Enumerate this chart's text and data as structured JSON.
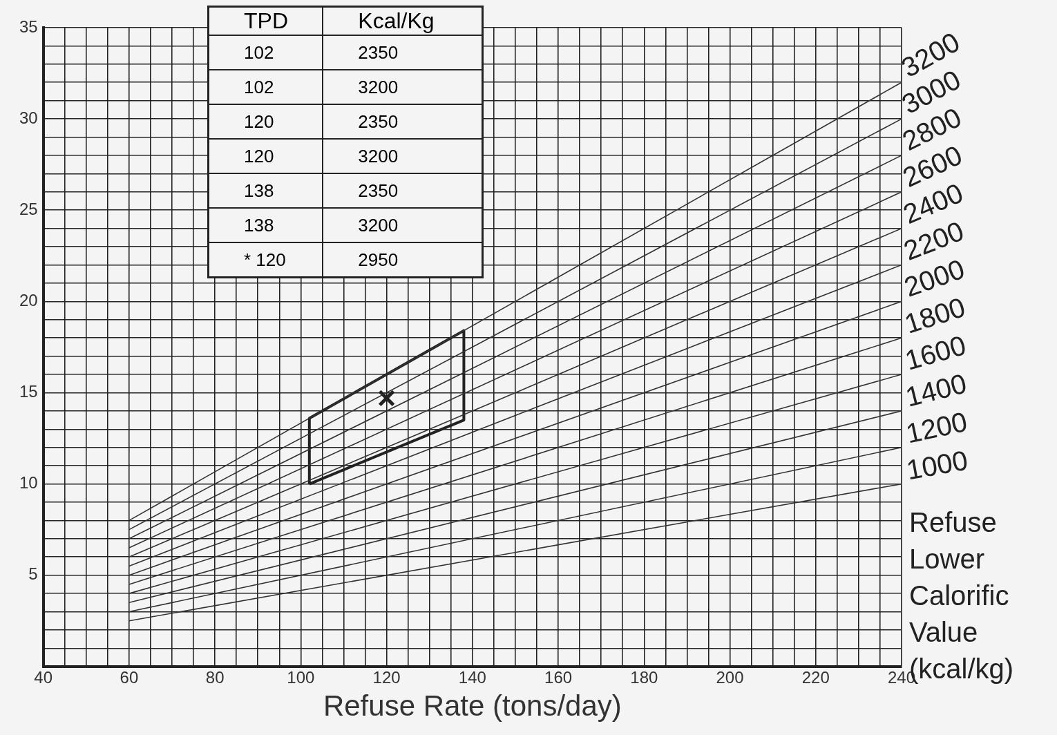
{
  "chart_data": {
    "type": "line",
    "xlabel": "Refuse Rate (tons/day)",
    "legend_title": "Refuse Lower Calorific Value (kcal/kg)",
    "annotations": [
      "TPD",
      "Kcal/Kg",
      "102",
      "2350",
      "102",
      "3200",
      "120",
      "2350",
      "120",
      "3200",
      "138",
      "2350",
      "138",
      "3200",
      "* 120",
      "2950"
    ],
    "xlim": [
      40,
      240
    ],
    "ylim": [
      0,
      35
    ],
    "xticks": [
      40,
      {
        "value": 45,
        "label": null
      },
      {
        "value": 50,
        "label": null
      },
      {
        "value": 55,
        "label": null
      },
      60,
      {
        "value": 65,
        "label": null
      },
      {
        "value": 70,
        "label": null
      },
      {
        "value": 75,
        "label": null
      },
      80,
      {
        "value": 85,
        "label": null
      },
      {
        "value": 90,
        "label": null
      },
      {
        "value": 95,
        "label": null
      },
      100,
      {
        "value": 105,
        "label": null
      },
      {
        "value": 110,
        "label": null
      },
      {
        "value": 115,
        "label": null
      },
      120,
      {
        "value": 125,
        "label": null
      },
      {
        "value": 130,
        "label": null
      },
      {
        "value": 135,
        "label": null
      },
      140,
      {
        "value": 145,
        "label": null
      },
      {
        "value": 150,
        "label": null
      },
      {
        "value": 155,
        "label": null
      },
      160,
      {
        "value": 165,
        "label": null
      },
      {
        "value": 170,
        "label": null
      },
      {
        "value": 175,
        "label": null
      },
      180,
      {
        "value": 185,
        "label": null
      },
      {
        "value": 190,
        "label": null
      },
      {
        "value": 195,
        "label": null
      },
      200,
      {
        "value": 205,
        "label": null
      },
      {
        "value": 210,
        "label": null
      },
      {
        "value": 215,
        "label": null
      },
      220,
      {
        "value": 225,
        "label": null
      },
      {
        "value": 230,
        "label": null
      },
      {
        "value": 235,
        "label": null
      },
      240
    ],
    "yticks": [
      {
        "value": 0,
        "label": null
      },
      {
        "value": 1,
        "label": null
      },
      {
        "value": 2,
        "label": null
      },
      {
        "value": 3,
        "label": null
      },
      {
        "value": 4,
        "label": null
      },
      5,
      {
        "value": 6,
        "label": null
      },
      {
        "value": 7,
        "label": null
      },
      {
        "value": 8,
        "label": null
      },
      {
        "value": 9,
        "label": null
      },
      10,
      {
        "value": 11,
        "label": null
      },
      {
        "value": 12,
        "label": null
      },
      {
        "value": 13,
        "label": null
      },
      {
        "value": 14,
        "label": null
      },
      15,
      {
        "value": 16,
        "label": null
      },
      {
        "value": 17,
        "label": null
      },
      {
        "value": 18,
        "label": null
      },
      {
        "value": 19,
        "label": null
      },
      20,
      {
        "value": 21,
        "label": null
      },
      {
        "value": 22,
        "label": null
      },
      {
        "value": 23,
        "label": null
      },
      {
        "value": 24,
        "label": null
      },
      25,
      {
        "value": 26,
        "label": null
      },
      {
        "value": 27,
        "label": null
      },
      {
        "value": 28,
        "label": null
      },
      {
        "value": 29,
        "label": null
      },
      30,
      {
        "value": 31,
        "label": null
      },
      {
        "value": 32,
        "label": null
      },
      {
        "value": 33,
        "label": null
      },
      {
        "value": 34,
        "label": null
      },
      35
    ],
    "grid": true,
    "marker": "none",
    "line_style": "solid",
    "series": [
      {
        "name": "3200",
        "color": "#333333",
        "x": [
          60,
          240
        ],
        "values": [
          8.0,
          32.0
        ]
      },
      {
        "name": "3000",
        "color": "#333333",
        "x": [
          60,
          240
        ],
        "values": [
          7.5,
          30.0
        ]
      },
      {
        "name": "2800",
        "color": "#333333",
        "x": [
          60,
          240
        ],
        "values": [
          7.0,
          28.0
        ]
      },
      {
        "name": "2600",
        "color": "#333333",
        "x": [
          60,
          240
        ],
        "values": [
          6.5,
          26.0
        ]
      },
      {
        "name": "2400",
        "color": "#333333",
        "x": [
          60,
          240
        ],
        "values": [
          6.0,
          24.0
        ]
      },
      {
        "name": "2200",
        "color": "#333333",
        "x": [
          60,
          240
        ],
        "values": [
          5.5,
          22.0
        ]
      },
      {
        "name": "2000",
        "color": "#333333",
        "x": [
          60,
          240
        ],
        "values": [
          5.0,
          20.0
        ]
      },
      {
        "name": "1800",
        "color": "#333333",
        "x": [
          60,
          240
        ],
        "values": [
          4.5,
          18.0
        ]
      },
      {
        "name": "1600",
        "color": "#333333",
        "x": [
          60,
          240
        ],
        "values": [
          4.0,
          16.0
        ]
      },
      {
        "name": "1400",
        "color": "#333333",
        "x": [
          60,
          240
        ],
        "values": [
          3.5,
          14.0
        ]
      },
      {
        "name": "1200",
        "color": "#333333",
        "x": [
          60,
          240
        ],
        "values": [
          3.0,
          12.0
        ]
      },
      {
        "name": "1000",
        "color": "#333333",
        "x": [
          60,
          240
        ],
        "values": [
          2.5,
          10.0
        ]
      },
      {
        "color": "#222222",
        "x": [
          102,
          102,
          138,
          138
        ],
        "values": [
          10.0,
          13.6,
          18.4,
          13.5
        ]
      },
      {
        "color": "#222222",
        "x": [
          102,
          138
        ],
        "values": [
          10.0,
          13.5
        ]
      },
      {
        "type": "scatter",
        "marker": "cross",
        "color": "#222222",
        "x": [
          120
        ],
        "values": [
          14.7
        ]
      }
    ]
  }
}
